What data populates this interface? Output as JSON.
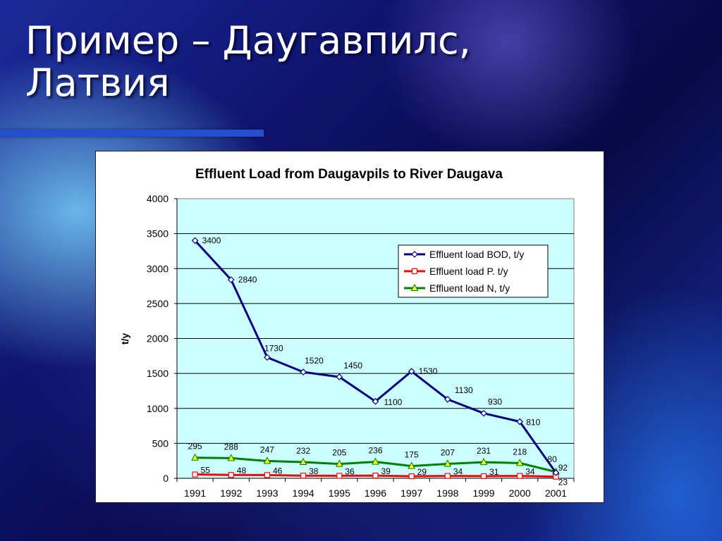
{
  "slide": {
    "title": "Пример – Даугавпилс,\nЛатвия"
  },
  "chart_data": {
    "type": "line",
    "title": "Effluent Load from Daugavpils to River Daugava",
    "xlabel": "",
    "ylabel": "t/y",
    "ylim": [
      0,
      4000
    ],
    "yticks": [
      0,
      500,
      1000,
      1500,
      2000,
      2500,
      3000,
      3500,
      4000
    ],
    "grid": true,
    "legend_position": "top-right",
    "plot_background": "#ccffff",
    "categories": [
      "1991",
      "1992",
      "1993",
      "1994",
      "1995",
      "1996",
      "1997",
      "1998",
      "1999",
      "2000",
      "2001"
    ],
    "series": [
      {
        "name": "Effluent load BOD, t/y",
        "color": "#000080",
        "marker": "diamond",
        "values": [
          3400,
          2840,
          1730,
          1520,
          1450,
          1100,
          1530,
          1130,
          930,
          810,
          80
        ]
      },
      {
        "name": "Effluent load P. t/y",
        "color": "#ff0000",
        "marker": "square",
        "values": [
          55,
          48,
          46,
          38,
          36,
          39,
          29,
          34,
          31,
          34,
          23
        ]
      },
      {
        "name": "Effluent load N, t/y",
        "color": "#008000",
        "marker": "triangle",
        "values": [
          295,
          288,
          247,
          232,
          205,
          236,
          175,
          207,
          231,
          218,
          92
        ]
      }
    ]
  }
}
